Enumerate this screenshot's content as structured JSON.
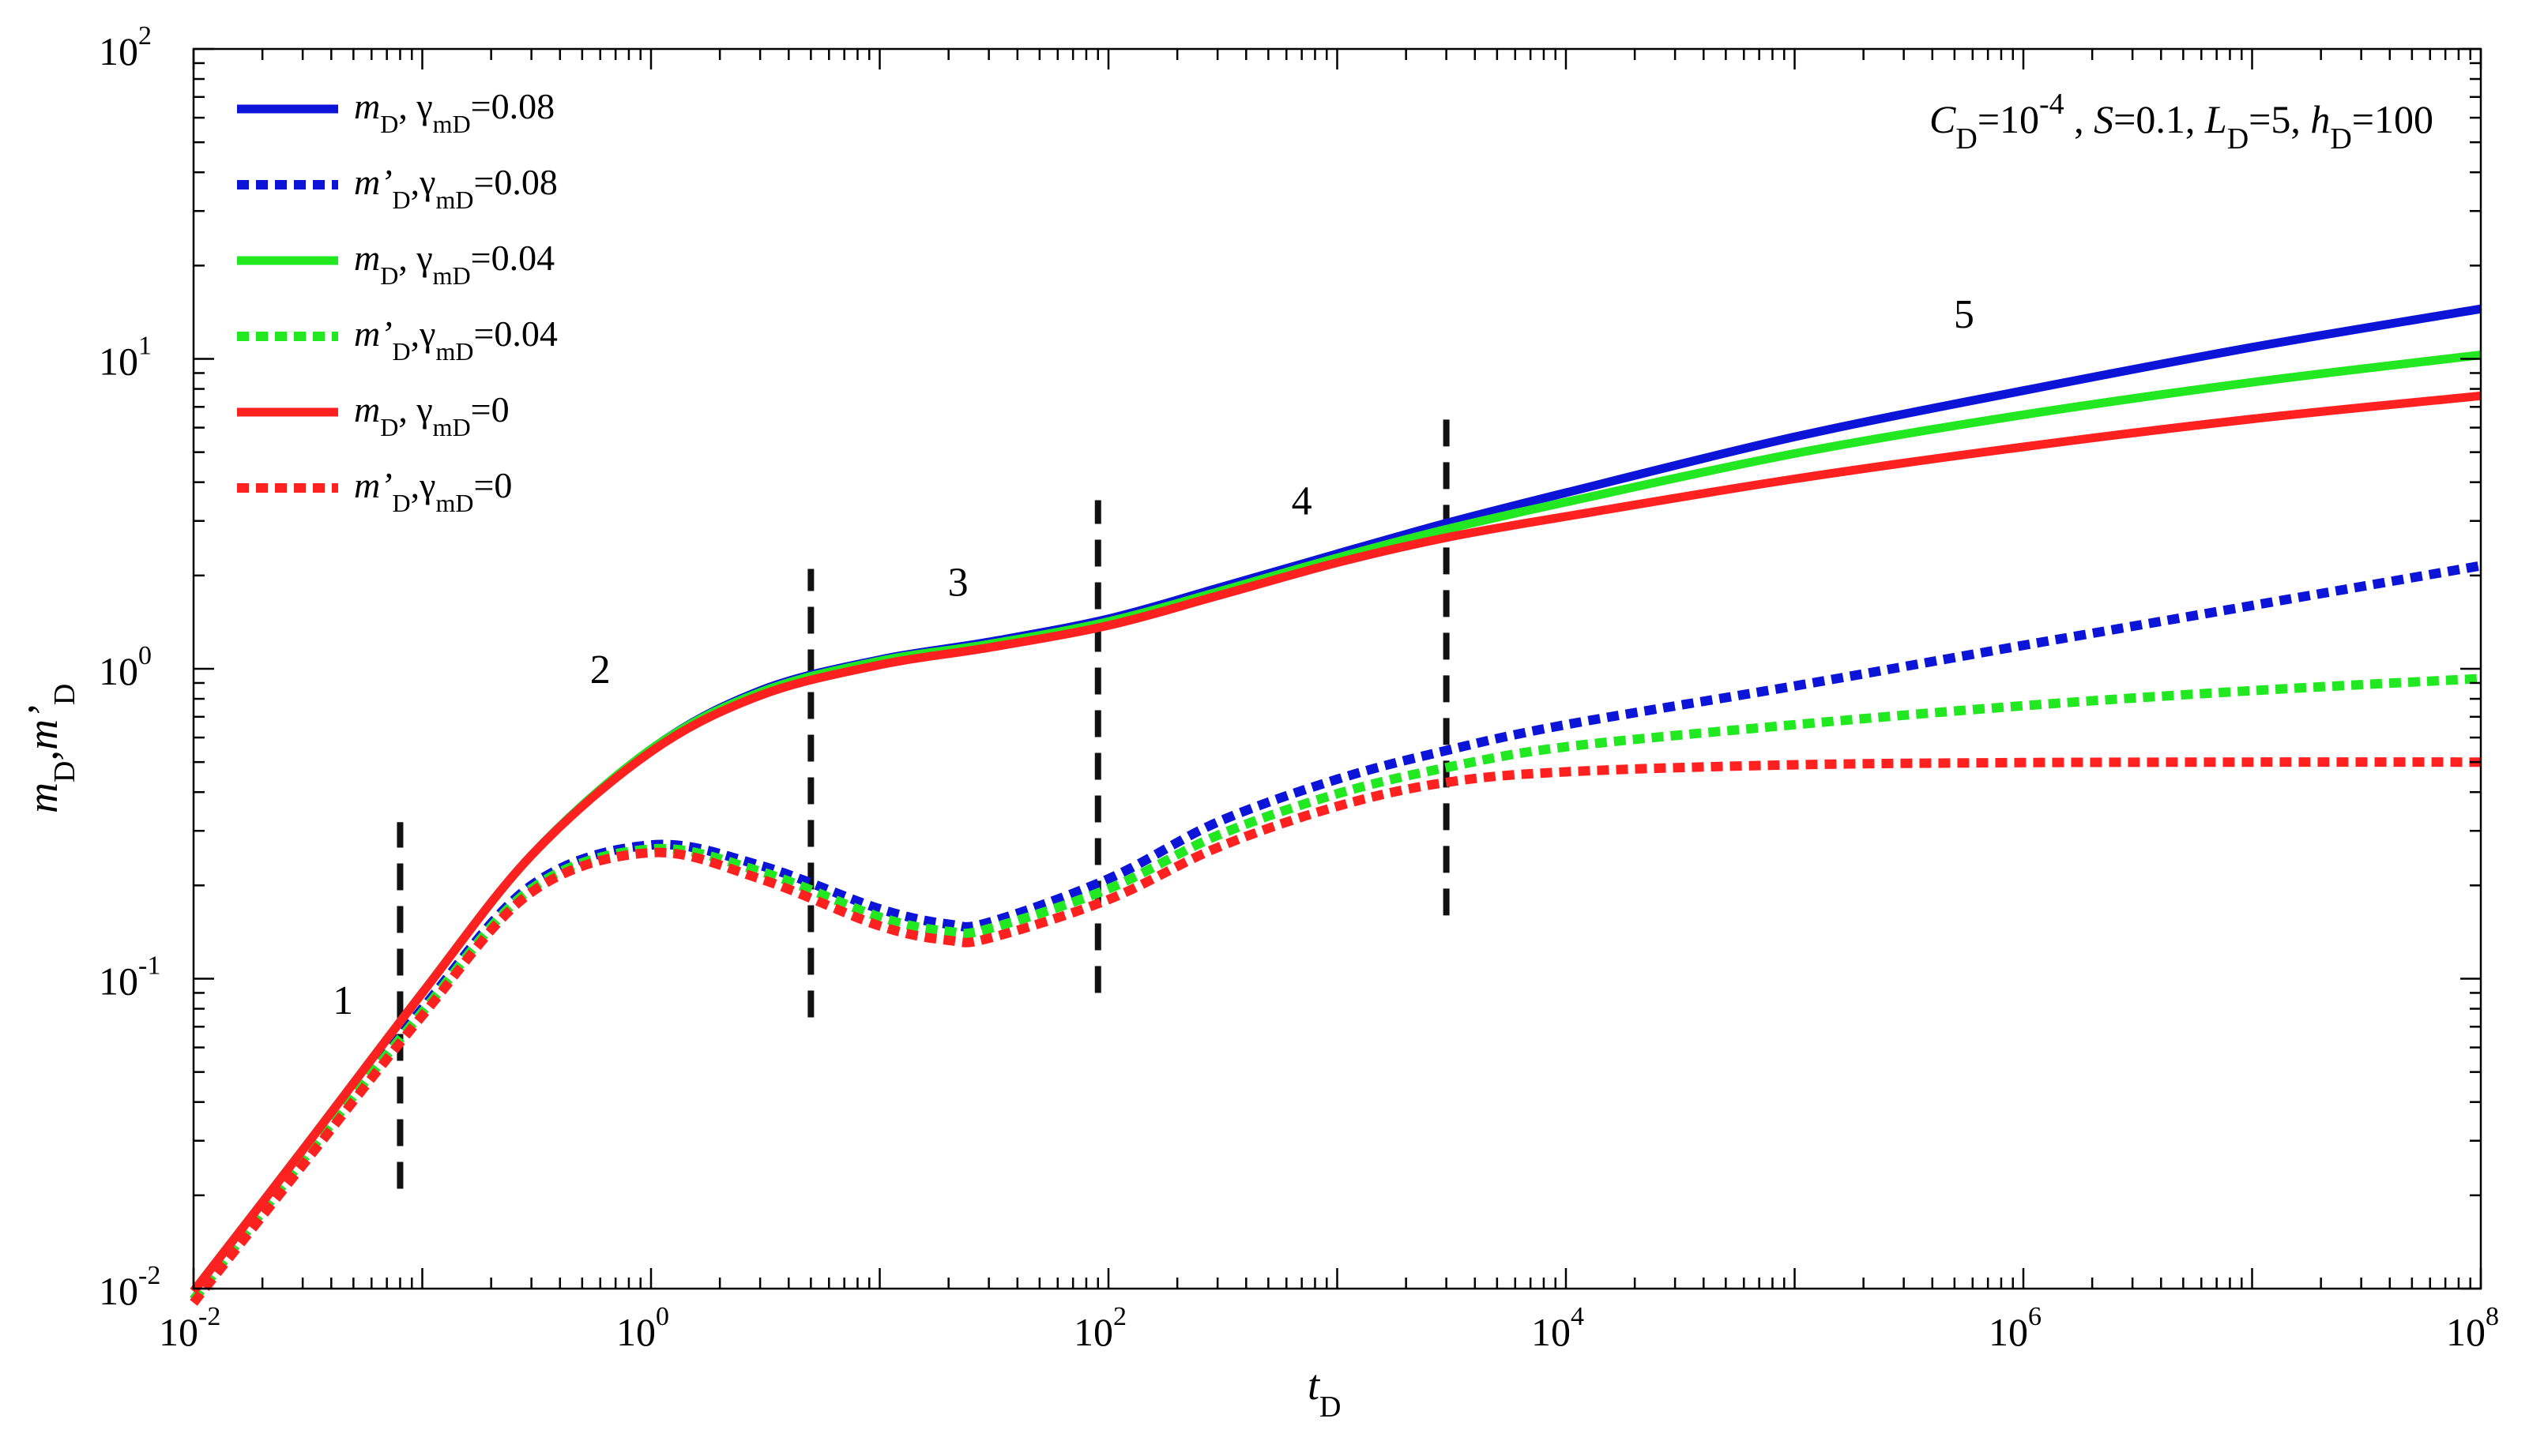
{
  "chart_data": {
    "type": "line",
    "xscale": "log",
    "yscale": "log",
    "xlim": [
      0.01,
      100000000
    ],
    "ylim": [
      0.01,
      100
    ],
    "grid": false,
    "xlabel": {
      "main": "t",
      "sub": "D"
    },
    "ylabel": {
      "m1": "m",
      "s1": "D",
      "comma": ",",
      "m2": "m’",
      "s2": "D"
    },
    "xticks": [
      {
        "value": 0.01,
        "base": "10",
        "exp": "-2"
      },
      {
        "value": 1,
        "base": "10",
        "exp": "0"
      },
      {
        "value": 100,
        "base": "10",
        "exp": "2"
      },
      {
        "value": 10000,
        "base": "10",
        "exp": "4"
      },
      {
        "value": 1000000,
        "base": "10",
        "exp": "6"
      },
      {
        "value": 100000000,
        "base": "10",
        "exp": "8"
      }
    ],
    "yticks": [
      {
        "value": 0.01,
        "base": "10",
        "exp": "-2"
      },
      {
        "value": 0.1,
        "base": "10",
        "exp": "-1"
      },
      {
        "value": 1,
        "base": "10",
        "exp": "0"
      },
      {
        "value": 10,
        "base": "10",
        "exp": "1"
      },
      {
        "value": 100,
        "base": "10",
        "exp": "2"
      }
    ],
    "annotation": {
      "c": "C",
      "c_sub": "D",
      "c_eq": "=10",
      "c_exp": "-4",
      "s_sep": " , ",
      "s": "S",
      "s_val": "=0.1, ",
      "l": "L",
      "l_sub": "D",
      "l_val": "=5, ",
      "h": "h",
      "h_sub": "D",
      "h_val": "=100"
    },
    "flow_regimes": [
      {
        "label": "1",
        "x": 0.045,
        "y": 0.077
      },
      {
        "label": "2",
        "x": 0.6,
        "y": 0.9
      },
      {
        "label": "3",
        "x": 22,
        "y": 1.72
      },
      {
        "label": "4",
        "x": 700,
        "y": 3.15
      },
      {
        "label": "5",
        "x": 550000,
        "y": 12.6
      }
    ],
    "dividers": [
      {
        "x": 0.08,
        "y_from": 0.021,
        "y_to": 0.32
      },
      {
        "x": 5,
        "y_from": 0.075,
        "y_to": 2.1
      },
      {
        "x": 90,
        "y_from": 0.09,
        "y_to": 3.5
      },
      {
        "x": 3000,
        "y_from": 0.16,
        "y_to": 6.8
      }
    ],
    "series": [
      {
        "name": "mD, γmD=0.08",
        "dashed": false,
        "color": "#0c14d8",
        "legend": {
          "m": "m",
          "ms": "D",
          "sep": ", ",
          "g": "γ",
          "gs": "mD",
          "val": "=0.08"
        },
        "x": [
          0.01,
          0.03,
          0.1,
          0.3,
          1,
          3,
          10,
          30,
          100,
          300,
          1000,
          3000,
          10000,
          100000,
          1000000,
          10000000,
          100000000
        ],
        "y": [
          0.0098,
          0.028,
          0.09,
          0.25,
          0.55,
          0.85,
          1.07,
          1.22,
          1.45,
          1.82,
          2.35,
          2.95,
          3.7,
          5.6,
          7.9,
          10.9,
          14.5
        ]
      },
      {
        "name": "m'D, γmD=0.08",
        "dashed": true,
        "color": "#0c14d8",
        "legend": {
          "m": "m’",
          "ms": "D",
          "sep": ",",
          "g": "γ",
          "gs": "mD",
          "val": "=0.08"
        },
        "x": [
          0.01,
          0.03,
          0.1,
          0.3,
          1,
          3,
          10,
          20,
          30,
          100,
          300,
          1000,
          3000,
          10000,
          100000,
          1000000,
          10000000,
          100000000
        ],
        "y": [
          0.0092,
          0.026,
          0.08,
          0.2,
          0.27,
          0.232,
          0.168,
          0.15,
          0.152,
          0.21,
          0.32,
          0.44,
          0.545,
          0.66,
          0.88,
          1.19,
          1.6,
          2.15
        ]
      },
      {
        "name": "mD, γmD=0.04",
        "dashed": false,
        "color": "#22e822",
        "legend": {
          "m": "m",
          "ms": "D",
          "sep": ", ",
          "g": "γ",
          "gs": "mD",
          "val": "=0.04"
        },
        "x": [
          0.01,
          0.03,
          0.1,
          0.3,
          1,
          3,
          10,
          30,
          100,
          300,
          1000,
          3000,
          10000,
          100000,
          1000000,
          10000000,
          100000000
        ],
        "y": [
          0.0098,
          0.028,
          0.09,
          0.25,
          0.55,
          0.84,
          1.06,
          1.2,
          1.42,
          1.77,
          2.28,
          2.82,
          3.45,
          4.95,
          6.6,
          8.4,
          10.3
        ]
      },
      {
        "name": "m'D, γmD=0.04",
        "dashed": true,
        "color": "#22e822",
        "legend": {
          "m": "m’",
          "ms": "D",
          "sep": ",",
          "g": "γ",
          "gs": "mD",
          "val": "=0.04"
        },
        "x": [
          0.01,
          0.03,
          0.1,
          0.3,
          1,
          3,
          10,
          20,
          30,
          100,
          300,
          1000,
          3000,
          10000,
          100000,
          1000000,
          10000000,
          100000000
        ],
        "y": [
          0.0092,
          0.026,
          0.078,
          0.195,
          0.262,
          0.222,
          0.158,
          0.142,
          0.145,
          0.195,
          0.29,
          0.395,
          0.48,
          0.56,
          0.66,
          0.76,
          0.85,
          0.93
        ]
      },
      {
        "name": "mD, γmD=0",
        "dashed": false,
        "color": "#ff2020",
        "legend": {
          "m": "m",
          "ms": "D",
          "sep": ", ",
          "g": "γ",
          "gs": "mD",
          "val": "=0"
        },
        "x": [
          0.01,
          0.03,
          0.1,
          0.3,
          1,
          3,
          10,
          30,
          100,
          300,
          1000,
          3000,
          10000,
          100000,
          1000000,
          10000000,
          100000000
        ],
        "y": [
          0.0098,
          0.028,
          0.09,
          0.25,
          0.54,
          0.82,
          1.03,
          1.17,
          1.38,
          1.72,
          2.2,
          2.65,
          3.1,
          4.1,
          5.2,
          6.4,
          7.6
        ]
      },
      {
        "name": "m'D, γmD=0",
        "dashed": true,
        "color": "#ff2020",
        "legend": {
          "m": "m’",
          "ms": "D",
          "sep": ",",
          "g": "γ",
          "gs": "mD",
          "val": "=0"
        },
        "x": [
          0.01,
          0.03,
          0.1,
          0.3,
          1,
          3,
          10,
          20,
          30,
          100,
          300,
          1000,
          3000,
          10000,
          100000,
          1000000,
          10000000,
          100000000
        ],
        "y": [
          0.009,
          0.025,
          0.076,
          0.19,
          0.255,
          0.21,
          0.148,
          0.133,
          0.135,
          0.18,
          0.265,
          0.36,
          0.43,
          0.465,
          0.49,
          0.498,
          0.5,
          0.5
        ]
      }
    ]
  }
}
